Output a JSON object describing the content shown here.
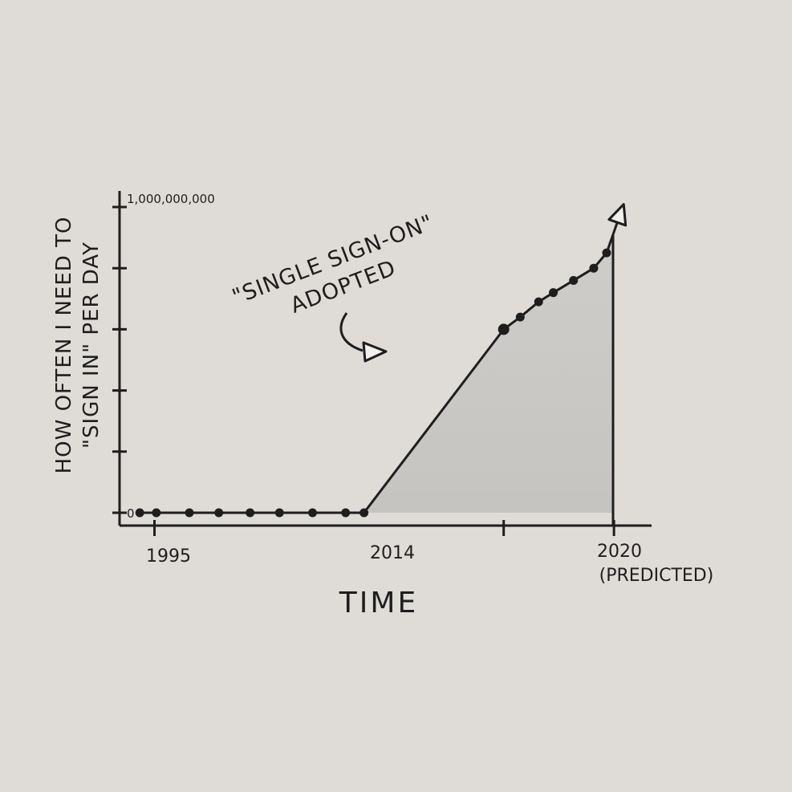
{
  "chart_data": {
    "type": "area",
    "title": "",
    "xlabel": "TIME",
    "ylabel_lines": [
      "HOW OFTEN I NEED TO",
      "\"SIGN IN\" PER DAY"
    ],
    "y_top_label": "1,000,000,000",
    "y_zero_label": "0",
    "x_tick_labels": [
      {
        "label": "1995",
        "x": 1995
      },
      {
        "label": "2014",
        "x": 2014
      },
      {
        "label": "2020",
        "sublabel": "(PREDICTED)",
        "x": 2020
      }
    ],
    "annotation": {
      "lines": [
        "\"SINGLE SIGN-ON\"",
        "ADOPTED"
      ],
      "x": 2014,
      "y": 0.6
    },
    "xlim": [
      1993.1,
      2020.3
    ],
    "ylim": [
      0,
      1.0
    ],
    "y_ticks": [
      0,
      0.2,
      0.4,
      0.6,
      0.8,
      1.0
    ],
    "grid": false,
    "series": [
      {
        "x": [
          1994.2,
          1995.1,
          1996.9,
          1998.5,
          2000.2,
          2001.8,
          2003.6,
          2005.4,
          2006.4,
          2014.0,
          2014.9,
          2015.9,
          2016.7,
          2017.8,
          2018.9,
          2019.6,
          2019.95
        ],
        "y": [
          0.0,
          0.0,
          0.0,
          0.0,
          0.0,
          0.0,
          0.0,
          0.0,
          0.0,
          0.6,
          0.64,
          0.69,
          0.72,
          0.76,
          0.8,
          0.85,
          0.91
        ]
      }
    ]
  }
}
